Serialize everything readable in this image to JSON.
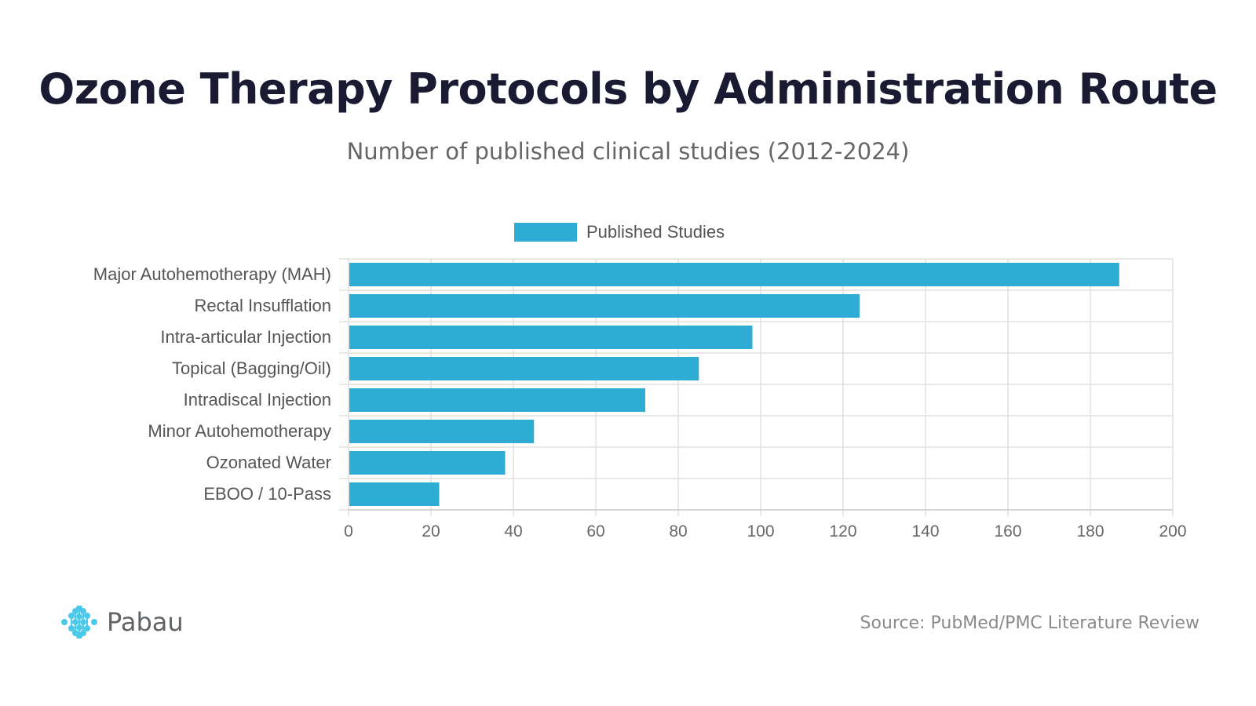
{
  "title": "Ozone Therapy Protocols by Administration Route",
  "subtitle": "Number of published clinical studies (2012-2024)",
  "source": "Source: PubMed/PMC Literature Review",
  "logo": {
    "text": "Pabau",
    "color": "#4cc8e8"
  },
  "chart_data": {
    "type": "bar",
    "orientation": "horizontal",
    "categories": [
      "Major Autohemotherapy (MAH)",
      "Rectal Insufflation",
      "Intra-articular Injection",
      "Topical (Bagging/Oil)",
      "Intradiscal Injection",
      "Minor Autohemotherapy",
      "Ozonated Water",
      "EBOO / 10-Pass"
    ],
    "series": [
      {
        "name": "Published Studies",
        "values": [
          187,
          124,
          98,
          85,
          72,
          45,
          38,
          22
        ],
        "color": "#2eacd3"
      }
    ],
    "xlim": [
      0,
      200
    ],
    "xticks": [
      0,
      20,
      40,
      60,
      80,
      100,
      120,
      140,
      160,
      180,
      200
    ],
    "grid": true,
    "legend": "top"
  }
}
